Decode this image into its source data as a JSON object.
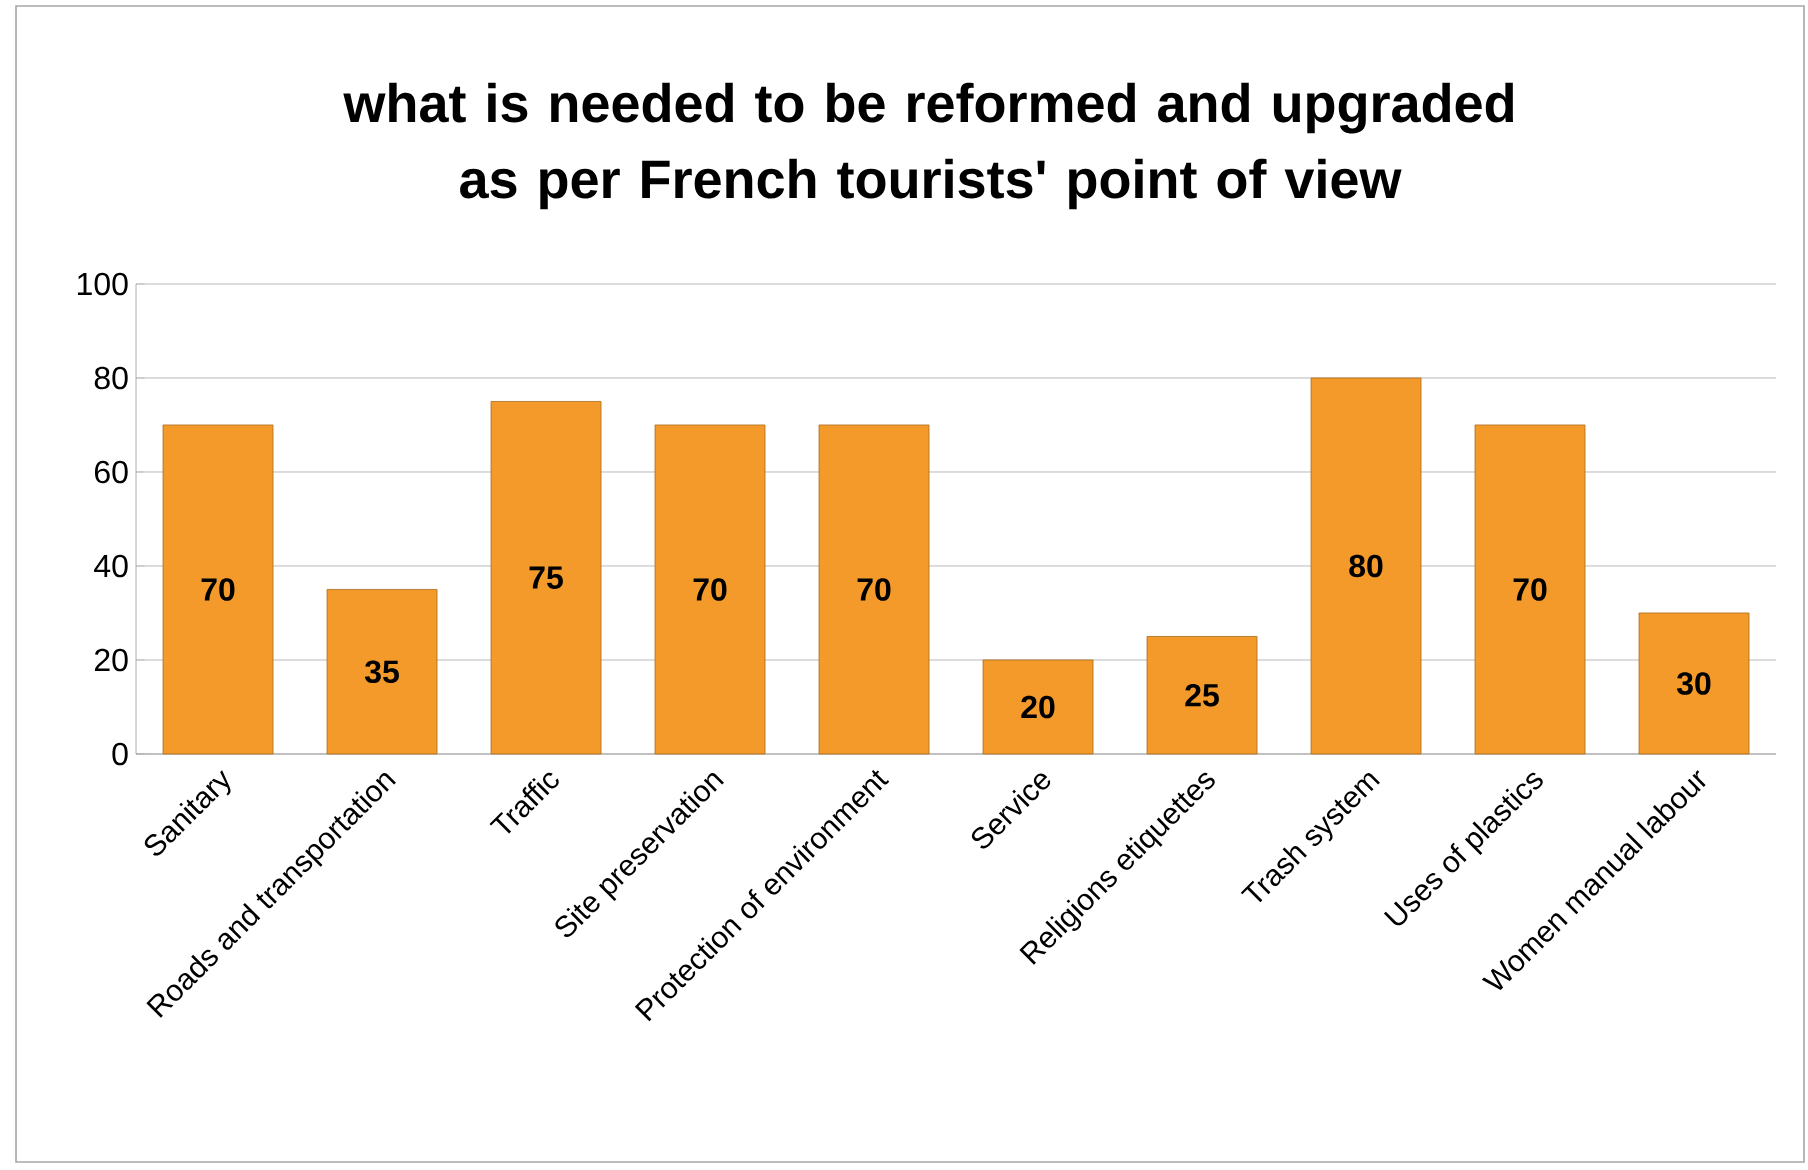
{
  "chart_data": {
    "type": "bar",
    "title": "what is needed to be reformed and upgraded as per French tourists' point of view",
    "categories": [
      "Sanitary",
      "Roads and transportation",
      "Traffic",
      "Site preservation",
      "Protection of environment",
      "Service",
      "Religions etiquettes",
      "Trash system",
      "Uses of plastics",
      "Women manual labour"
    ],
    "values": [
      70,
      35,
      75,
      70,
      70,
      20,
      25,
      80,
      70,
      30
    ],
    "color": "#f39a2a",
    "ylim": [
      0,
      100
    ],
    "yticks": [
      0,
      20,
      40,
      60,
      80,
      100
    ],
    "grid": "y",
    "data_labels": true
  }
}
